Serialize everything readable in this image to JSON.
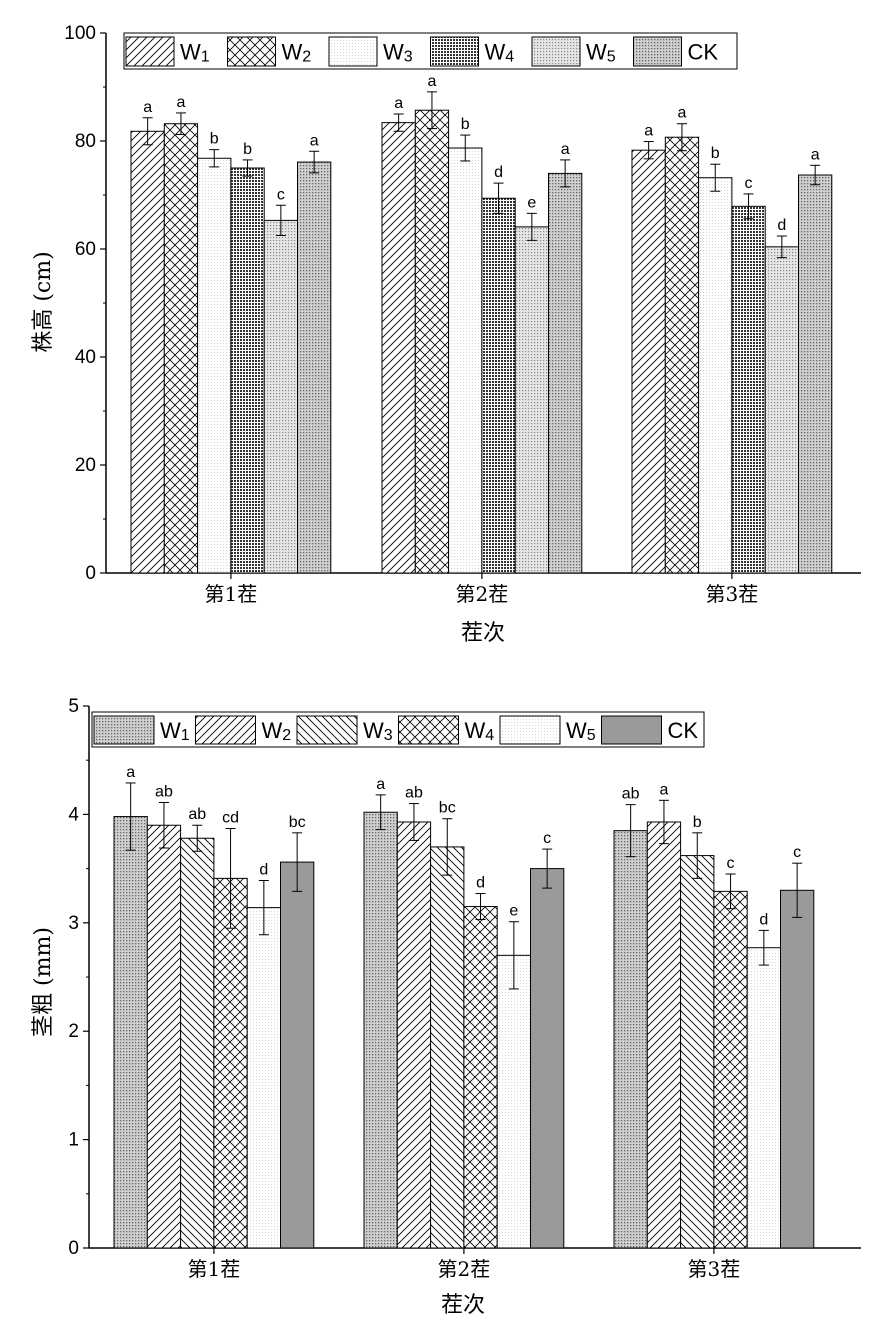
{
  "chart_data": [
    {
      "type": "bar",
      "xlabel": "茬次",
      "ylabel": "株高 (cm)",
      "ylim": [
        0,
        100
      ],
      "yticks": [
        "0",
        "20",
        "40",
        "60",
        "80",
        "100"
      ],
      "categories": [
        "第1茬",
        "第2茬",
        "第3茬"
      ],
      "legend": {
        "placement": "top",
        "entries": [
          "W1",
          "W2",
          "W3",
          "W4",
          "W5",
          "CK"
        ]
      },
      "series": [
        {
          "name": "W1",
          "pattern": "diag-right",
          "values": [
            81.8,
            83.4,
            78.3
          ],
          "errors": [
            2.5,
            1.6,
            1.6
          ],
          "letters": [
            "a",
            "a",
            "a"
          ]
        },
        {
          "name": "W2",
          "pattern": "crosshatch",
          "values": [
            83.2,
            85.7,
            80.7
          ],
          "errors": [
            2.0,
            3.4,
            2.5
          ],
          "letters": [
            "a",
            "a",
            "a"
          ]
        },
        {
          "name": "W3",
          "pattern": "fine-dots",
          "values": [
            76.8,
            78.7,
            73.2
          ],
          "errors": [
            1.6,
            2.4,
            2.5
          ],
          "letters": [
            "b",
            "b",
            "b"
          ]
        },
        {
          "name": "W4",
          "pattern": "dense-grid",
          "values": [
            75.0,
            69.4,
            67.9
          ],
          "errors": [
            1.5,
            2.8,
            2.3
          ],
          "letters": [
            "b",
            "d",
            "c"
          ]
        },
        {
          "name": "W5",
          "pattern": "dots",
          "values": [
            65.3,
            64.1,
            60.4
          ],
          "errors": [
            2.8,
            2.5,
            2.0
          ],
          "letters": [
            "c",
            "e",
            "d"
          ]
        },
        {
          "name": "CK",
          "pattern": "medium-dots",
          "values": [
            76.1,
            74.0,
            73.7
          ],
          "errors": [
            2.0,
            2.5,
            1.8
          ],
          "letters": [
            "a",
            "a",
            "a"
          ]
        }
      ]
    },
    {
      "type": "bar",
      "xlabel": "茬次",
      "ylabel": "茎粗 (mm)",
      "ylim": [
        0,
        5
      ],
      "yticks": [
        "0",
        "1",
        "2",
        "3",
        "4",
        "5"
      ],
      "categories": [
        "第1茬",
        "第2茬",
        "第3茬"
      ],
      "legend": {
        "placement": "top",
        "entries": [
          "W1",
          "W2",
          "W3",
          "W4",
          "W5",
          "CK"
        ]
      },
      "series": [
        {
          "name": "W1",
          "pattern": "medium-dots",
          "values": [
            3.98,
            4.02,
            3.85
          ],
          "errors": [
            0.31,
            0.16,
            0.24
          ],
          "letters": [
            "a",
            "a",
            "ab"
          ]
        },
        {
          "name": "W2",
          "pattern": "diag-right",
          "values": [
            3.9,
            3.93,
            3.93
          ],
          "errors": [
            0.21,
            0.17,
            0.2
          ],
          "letters": [
            "ab",
            "ab",
            "a"
          ]
        },
        {
          "name": "W3",
          "pattern": "diag-left",
          "values": [
            3.78,
            3.7,
            3.62
          ],
          "errors": [
            0.12,
            0.26,
            0.21
          ],
          "letters": [
            "ab",
            "bc",
            "b"
          ]
        },
        {
          "name": "W4",
          "pattern": "crosshatch",
          "values": [
            3.41,
            3.15,
            3.29
          ],
          "errors": [
            0.46,
            0.12,
            0.16
          ],
          "letters": [
            "cd",
            "d",
            "c"
          ]
        },
        {
          "name": "W5",
          "pattern": "fine-dots",
          "values": [
            3.14,
            2.7,
            2.77
          ],
          "errors": [
            0.25,
            0.31,
            0.16
          ],
          "letters": [
            "d",
            "e",
            "d"
          ]
        },
        {
          "name": "CK",
          "pattern": "solid-gray",
          "values": [
            3.56,
            3.5,
            3.3
          ],
          "errors": [
            0.27,
            0.18,
            0.25
          ],
          "letters": [
            "bc",
            "c",
            "c"
          ]
        }
      ]
    }
  ]
}
